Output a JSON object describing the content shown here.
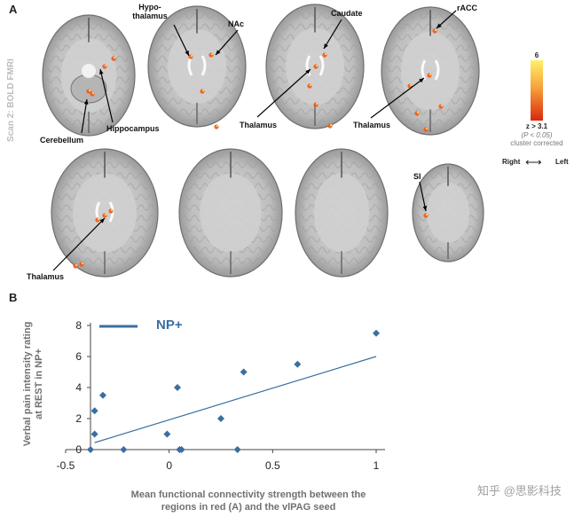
{
  "panel_a": {
    "letter": "A",
    "side_label": "Scan 2: BOLD FMRI",
    "labels": {
      "hypothalamus": "Hypo-\nthalamus",
      "nac": "NAc",
      "caudate": "Caudate",
      "racc": "rACC",
      "cerebellum": "Cerebellum",
      "hippocampus": "Hippocampus",
      "thalamus_1": "Thalamus",
      "thalamus_2": "Thalamus",
      "thalamus_3": "Thalamus",
      "si": "SI"
    },
    "colorbar": {
      "max": "6",
      "min": "z > 3.1",
      "p_note": "(P < 0.05)",
      "correction": "cluster corrected",
      "right": "Right",
      "left": "Left",
      "arrow": "⟷",
      "colors": {
        "top": "#fff06a",
        "bottom": "#d8280f"
      }
    }
  },
  "panel_b": {
    "letter": "B",
    "legend": "NP+",
    "xlabel_line1": "Mean functional connectivity strength between the",
    "xlabel_line2": "regions in red (A) and the vlPAG seed",
    "ylabel_line1": "Verbal pain intensity rating",
    "ylabel_line2": "at REST in NP+"
  },
  "chart_data": {
    "type": "scatter",
    "title": "",
    "xlabel": "Mean functional connectivity strength between the regions in red (A) and the vlPAG seed",
    "ylabel": "Verbal pain intensity rating at REST in NP+",
    "xlim": [
      -0.5,
      1
    ],
    "ylim": [
      0,
      8
    ],
    "xticks": [
      "-0.5",
      "0",
      "0.5",
      "1"
    ],
    "yticks": [
      "0",
      "2",
      "4",
      "6",
      "8"
    ],
    "grid": false,
    "legend_position": "top-left",
    "series": [
      {
        "name": "NP+",
        "color": "#3a6fa0",
        "points": [
          [
            -0.38,
            0
          ],
          [
            -0.36,
            1
          ],
          [
            -0.36,
            2.5
          ],
          [
            -0.32,
            3.5
          ],
          [
            -0.22,
            0
          ],
          [
            -0.01,
            1
          ],
          [
            0.04,
            4
          ],
          [
            0.05,
            0
          ],
          [
            0.06,
            0
          ],
          [
            0.25,
            2
          ],
          [
            0.33,
            0
          ],
          [
            0.36,
            5
          ],
          [
            0.62,
            5.5
          ],
          [
            1.0,
            7.5
          ]
        ],
        "trendline": [
          [
            -0.36,
            0.45
          ],
          [
            1.0,
            6.0
          ]
        ]
      }
    ]
  },
  "watermark": "知乎 @思影科技"
}
